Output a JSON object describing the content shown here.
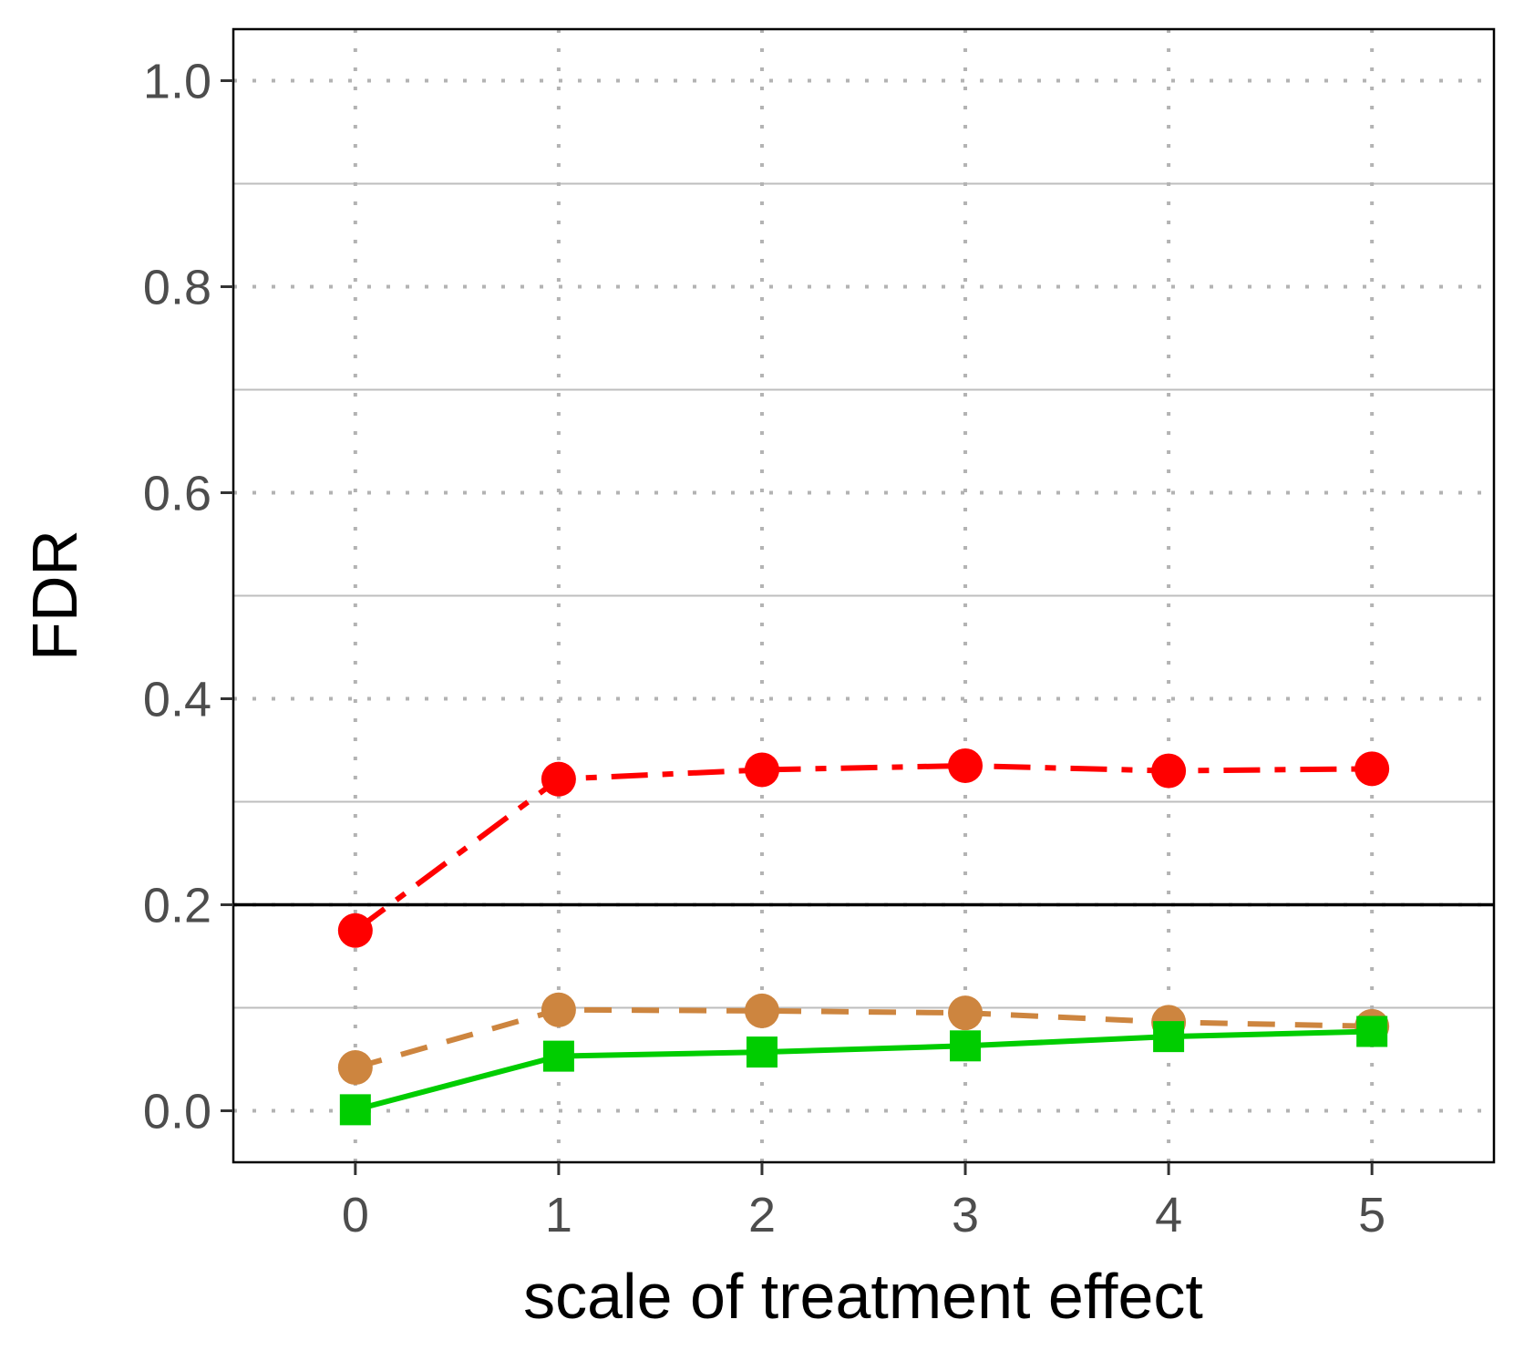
{
  "chart_data": {
    "type": "line",
    "title": "",
    "xlabel": "scale of treatment effect",
    "ylabel": "FDR",
    "x": [
      0,
      1,
      2,
      3,
      4,
      5
    ],
    "xlim": [
      -0.6,
      5.6
    ],
    "ylim": [
      -0.05,
      1.05
    ],
    "x_ticks": [
      "0",
      "1",
      "2",
      "3",
      "4",
      "5"
    ],
    "y_ticks": [
      "0.0",
      "0.2",
      "0.4",
      "0.6",
      "0.8",
      "1.0"
    ],
    "y_tick_values": [
      0.0,
      0.2,
      0.4,
      0.6,
      0.8,
      1.0
    ],
    "minor_gridlines_y": [
      0.1,
      0.3,
      0.5,
      0.7,
      0.9
    ],
    "reference_line_y": 0.2,
    "grid": true,
    "legend": "none",
    "series": [
      {
        "name": "red-dotdash-circles",
        "color": "#ff0000",
        "dash": "dotdash",
        "marker": "circle",
        "values": [
          0.175,
          0.322,
          0.331,
          0.335,
          0.33,
          0.332
        ]
      },
      {
        "name": "orange-dashed-circles",
        "color": "#cd853f",
        "dash": "dashed",
        "marker": "circle",
        "values": [
          0.042,
          0.098,
          0.097,
          0.095,
          0.086,
          0.082
        ]
      },
      {
        "name": "green-solid-squares",
        "color": "#00cd00",
        "dash": "solid",
        "marker": "square",
        "values": [
          0.001,
          0.053,
          0.057,
          0.063,
          0.072,
          0.077
        ]
      }
    ]
  }
}
